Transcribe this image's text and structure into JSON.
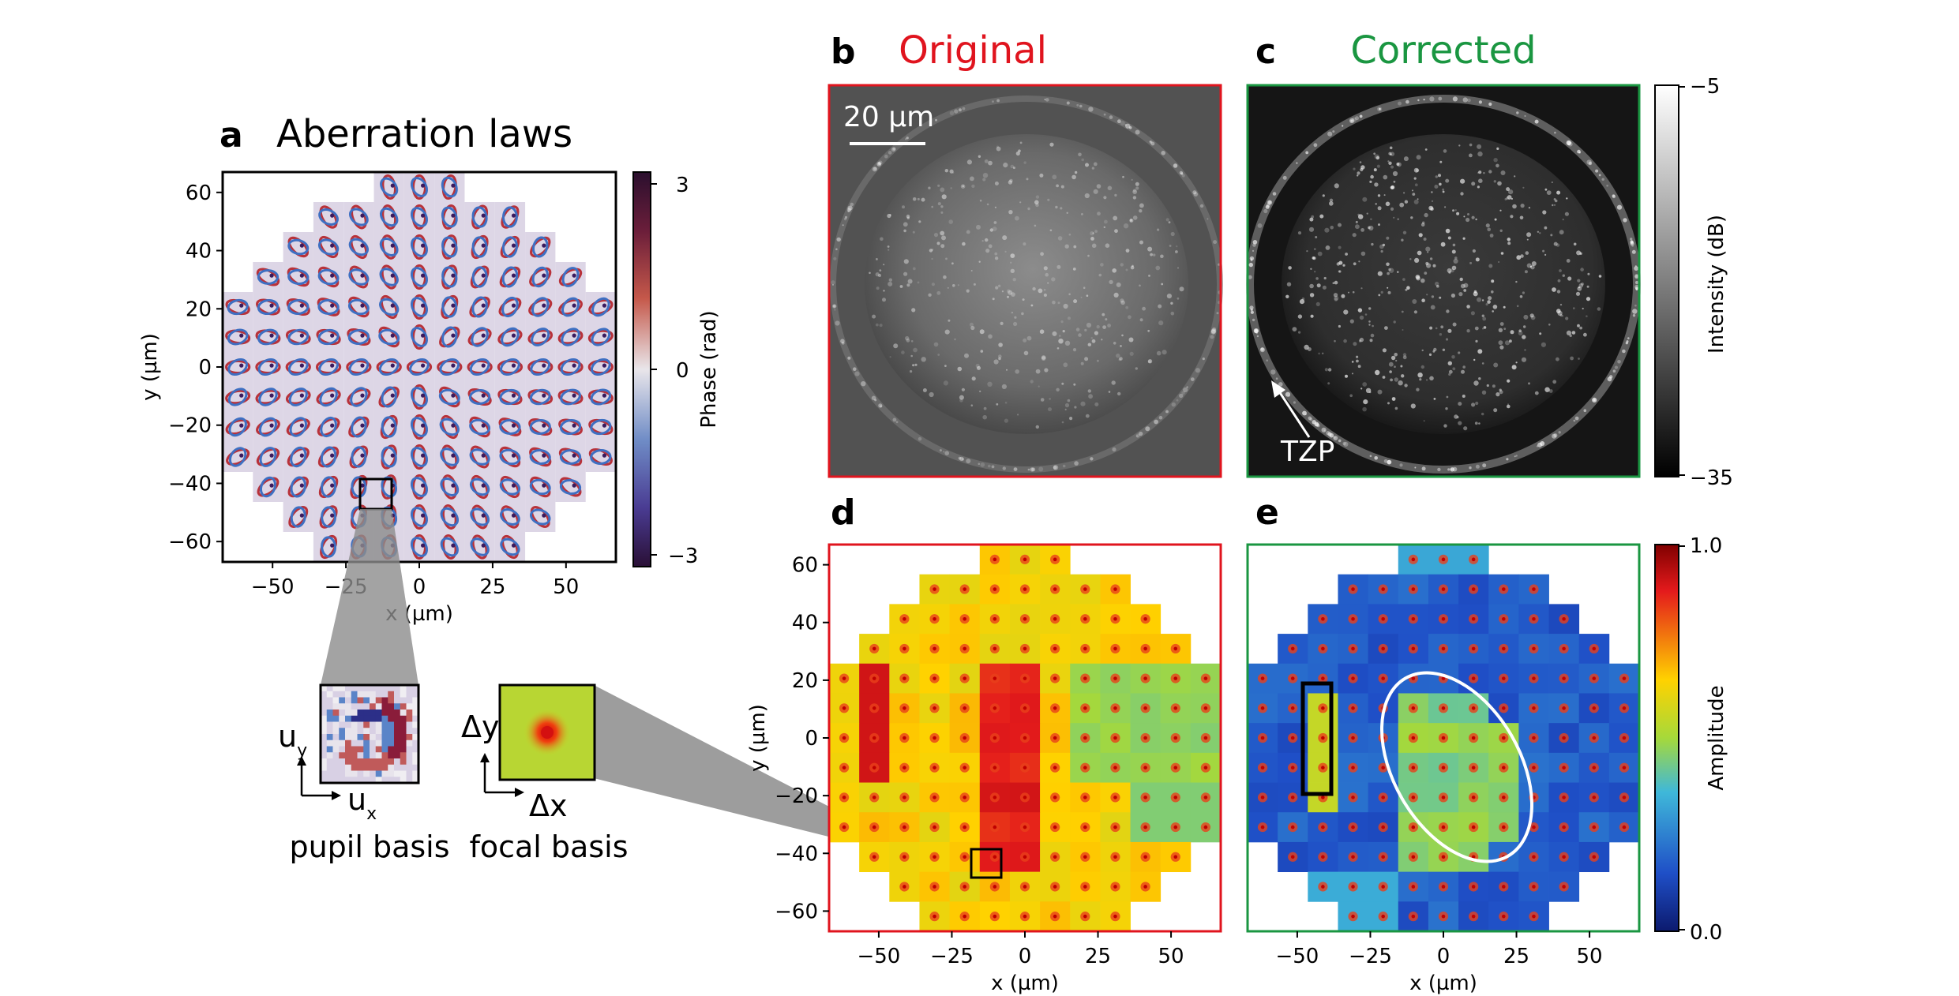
{
  "panel_a": {
    "letter": "a",
    "title": "Aberration laws",
    "x_axis_label": "x (µm)",
    "y_axis_label": "y (µm)",
    "x_ticks": [
      "−50",
      "−25",
      "0",
      "25",
      "50"
    ],
    "y_ticks": [
      "60",
      "40",
      "20",
      "0",
      "−20",
      "−40",
      "−60"
    ],
    "colorbar": {
      "label": "Phase (rad)",
      "ticks": [
        "3",
        "0",
        "−3"
      ]
    }
  },
  "inset_pupil": {
    "axis_v": "u",
    "axis_v_sub": "y",
    "axis_h": "u",
    "axis_h_sub": "x",
    "caption": "pupil basis"
  },
  "inset_focal": {
    "axis_v": "Δy",
    "axis_h": "Δx",
    "caption": "focal basis"
  },
  "panel_b": {
    "letter": "b",
    "title": "Original",
    "title_color": "#e0141e",
    "scalebar_label": "20 µm"
  },
  "panel_c": {
    "letter": "c",
    "title": "Corrected",
    "title_color": "#1a9641",
    "annotation": "TZP"
  },
  "colorbar_intensity": {
    "label": "Intensity (dB)",
    "ticks": [
      "−5",
      "−35"
    ]
  },
  "panel_d": {
    "letter": "d",
    "x_axis_label": "x (µm)",
    "y_axis_label": "y (µm)",
    "x_ticks": [
      "−50",
      "−25",
      "0",
      "25",
      "50"
    ],
    "y_ticks": [
      "60",
      "40",
      "20",
      "0",
      "−20",
      "−40",
      "−60"
    ]
  },
  "panel_e": {
    "letter": "e",
    "x_axis_label": "x (µm)",
    "x_ticks": [
      "−50",
      "−25",
      "0",
      "25",
      "50"
    ]
  },
  "colorbar_amplitude": {
    "label": "Amplitude",
    "ticks": [
      "1.0",
      "0.0"
    ]
  },
  "colors": {
    "original_frame": "#e0141e",
    "corrected_frame": "#1a9641"
  }
}
